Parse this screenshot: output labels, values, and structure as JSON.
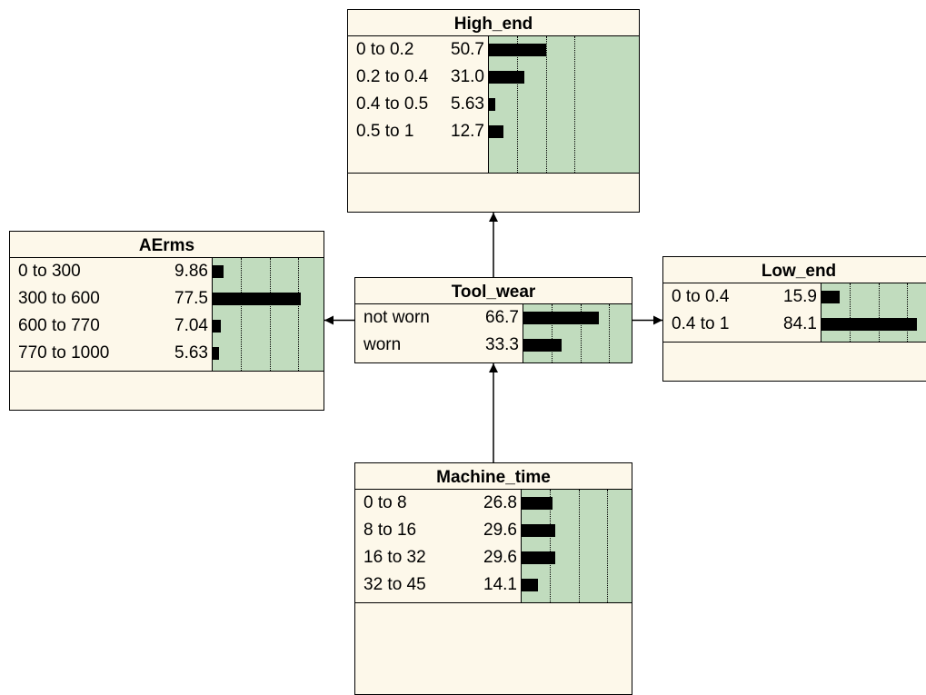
{
  "nodes": [
    {
      "id": "high_end",
      "title": "High_end",
      "states": [
        {
          "label": "0 to 0.2",
          "value": "50.7"
        },
        {
          "label": "0.2 to 0.4",
          "value": "31.0"
        },
        {
          "label": "0.4 to 0.5",
          "value": "5.63"
        },
        {
          "label": "0.5 to 1",
          "value": "12.7"
        }
      ]
    },
    {
      "id": "aerms",
      "title": "AErms",
      "states": [
        {
          "label": "0 to 300",
          "value": "9.86"
        },
        {
          "label": "300 to 600",
          "value": "77.5"
        },
        {
          "label": "600 to 770",
          "value": "7.04"
        },
        {
          "label": "770 to 1000",
          "value": "5.63"
        }
      ]
    },
    {
      "id": "tool_wear",
      "title": "Tool_wear",
      "states": [
        {
          "label": "not worn",
          "value": "66.7"
        },
        {
          "label": "worn",
          "value": "33.3"
        }
      ]
    },
    {
      "id": "low_end",
      "title": "Low_end",
      "states": [
        {
          "label": "0 to 0.4",
          "value": "15.9"
        },
        {
          "label": "0.4 to 1",
          "value": "84.1"
        }
      ]
    },
    {
      "id": "machine_time",
      "title": "Machine_time",
      "states": [
        {
          "label": "0 to 8",
          "value": "26.8"
        },
        {
          "label": "8 to 16",
          "value": "29.6"
        },
        {
          "label": "16 to 32",
          "value": "29.6"
        },
        {
          "label": "32 to 45",
          "value": "14.1"
        }
      ]
    }
  ],
  "links": [
    {
      "from": "tool_wear",
      "to": "high_end"
    },
    {
      "from": "tool_wear",
      "to": "aerms"
    },
    {
      "from": "tool_wear",
      "to": "low_end"
    },
    {
      "from": "machine_time",
      "to": "tool_wear"
    }
  ],
  "colors": {
    "node_fill": "#fdf8ea",
    "belief_panel": "#c1dcbe",
    "bar": "#000000"
  }
}
